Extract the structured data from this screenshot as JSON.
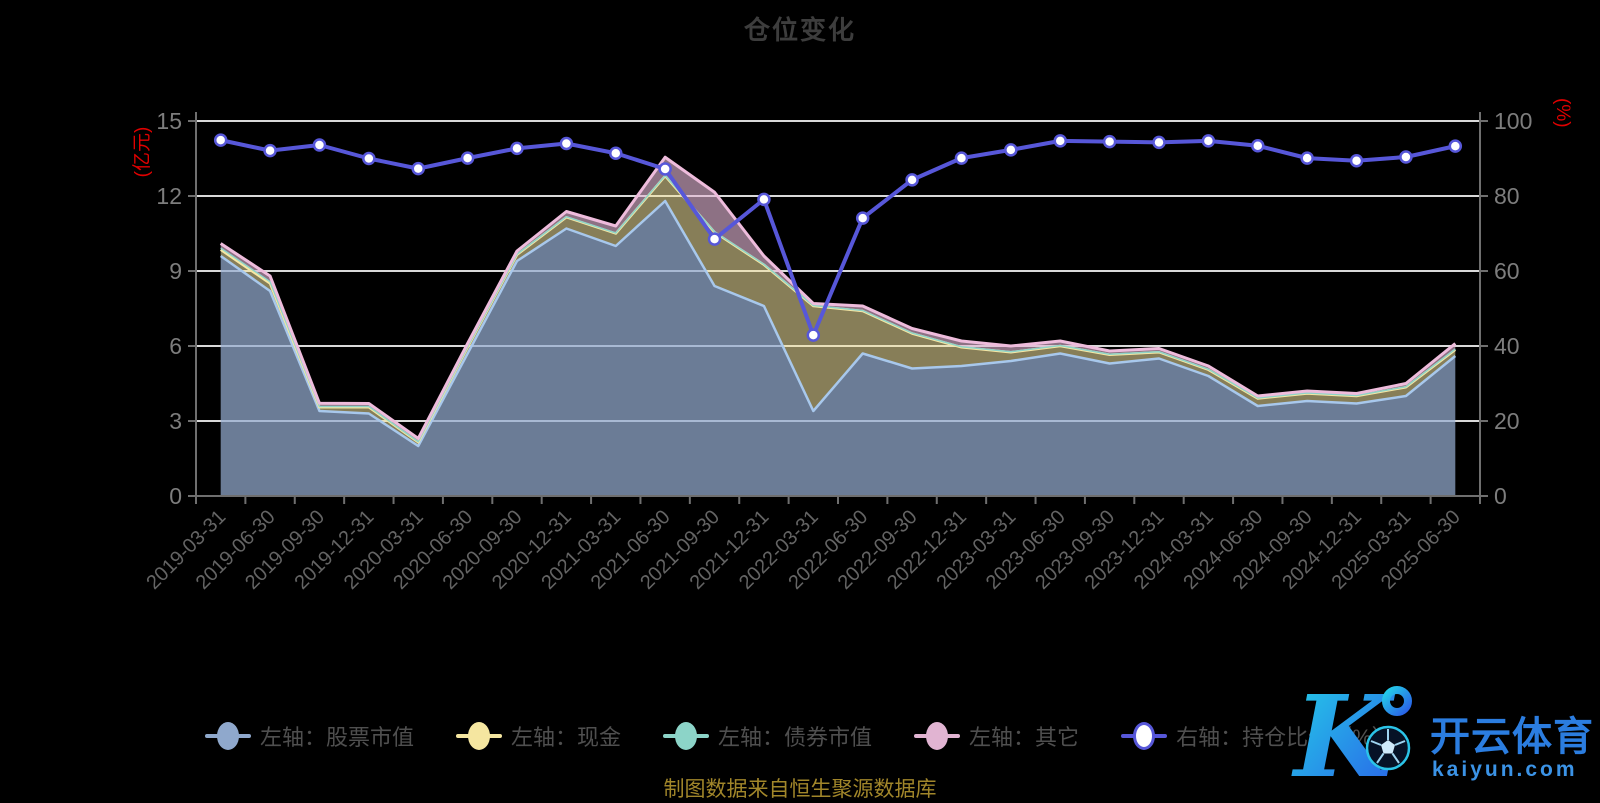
{
  "title": "仓位变化",
  "footer": "制图数据来自恒生聚源数据库",
  "watermark": {
    "brand": "开云体育",
    "domain": "kaiyun.com"
  },
  "colors": {
    "background": "#000000",
    "gridline": "#d9d9d9",
    "axis": "#6f6f6f",
    "y_tick_label": "#7d7d7d",
    "x_tick_label": "#646464",
    "axis_name_red": "#e00000",
    "title_gray": "#3d3d3d",
    "legend_text": "#4f4f4f",
    "footer_gold": "#a1862a",
    "watermark_cyan": "#24cfe8",
    "watermark_blue": "#2b7de0",
    "watermark_light_blue": "#3b93e6"
  },
  "chart_data": {
    "type": "area",
    "subtype": "stacked-area-with-line",
    "grid": true,
    "legend_position": "bottom",
    "categories": [
      "2019-03-31",
      "2019-06-30",
      "2019-09-30",
      "2019-12-31",
      "2020-03-31",
      "2020-06-30",
      "2020-09-30",
      "2020-12-31",
      "2021-03-31",
      "2021-06-30",
      "2021-09-30",
      "2021-12-31",
      "2022-03-31",
      "2022-06-30",
      "2022-09-30",
      "2022-12-31",
      "2023-03-31",
      "2023-06-30",
      "2023-09-30",
      "2023-12-31",
      "2024-03-31",
      "2024-06-30",
      "2024-09-30",
      "2024-12-31",
      "2025-03-31",
      "2025-06-30"
    ],
    "left_axis": {
      "name": "(亿元)",
      "min": 0,
      "max": 15,
      "ticks": [
        0,
        3,
        6,
        9,
        12,
        15
      ]
    },
    "right_axis": {
      "name": "(%)",
      "min": 0,
      "max": 100,
      "ticks": [
        0,
        20,
        40,
        60,
        80,
        100
      ]
    },
    "series": [
      {
        "name": "左轴：股票市值",
        "type": "area",
        "stack": "total",
        "yaxis": "left",
        "color": "#8fa8cc",
        "line_color": "#a8c8ec",
        "fill": "rgba(148,172,208,0.72)",
        "values": [
          9.6,
          8.2,
          3.4,
          3.3,
          2.0,
          5.7,
          9.4,
          10.7,
          10.0,
          11.8,
          8.4,
          7.6,
          3.4,
          5.7,
          5.1,
          5.2,
          5.4,
          5.7,
          5.3,
          5.5,
          4.8,
          3.6,
          3.8,
          3.7,
          4.0,
          5.6
        ]
      },
      {
        "name": "左轴：现金",
        "type": "area",
        "stack": "total",
        "yaxis": "left",
        "color": "#f5e6a0",
        "line_color": "#f6e7a4",
        "fill": "rgba(245,230,160,0.55)",
        "values": [
          0.25,
          0.3,
          0.15,
          0.25,
          0.15,
          0.25,
          0.25,
          0.45,
          0.5,
          1.0,
          2.15,
          1.65,
          4.2,
          1.7,
          1.4,
          0.75,
          0.35,
          0.3,
          0.35,
          0.25,
          0.25,
          0.3,
          0.3,
          0.3,
          0.35,
          0.25
        ]
      },
      {
        "name": "左轴：债券市值",
        "type": "area",
        "stack": "total",
        "yaxis": "left",
        "color": "#8cd4c8",
        "line_color": "#8fd4c8",
        "fill": "rgba(140,212,200,0.6)",
        "values": [
          0.07,
          0.07,
          0.03,
          0.03,
          0.02,
          0.02,
          0.02,
          0.02,
          0.02,
          0.02,
          0.02,
          0.02,
          0.02,
          0.02,
          0.02,
          0.02,
          0.02,
          0.02,
          0.02,
          0.02,
          0.02,
          0.02,
          0.02,
          0.02,
          0.02,
          0.03
        ]
      },
      {
        "name": "左轴：其它",
        "type": "area",
        "stack": "total",
        "yaxis": "left",
        "color": "#e1b4d2",
        "line_color": "#eebcdc",
        "fill": "rgba(228,182,213,0.62)",
        "values": [
          0.18,
          0.23,
          0.13,
          0.12,
          0.13,
          0.13,
          0.13,
          0.21,
          0.28,
          0.73,
          1.58,
          0.33,
          0.08,
          0.18,
          0.18,
          0.23,
          0.23,
          0.18,
          0.13,
          0.13,
          0.13,
          0.08,
          0.08,
          0.08,
          0.13,
          0.22
        ]
      },
      {
        "name": "右轴：持仓比例（%）",
        "type": "line",
        "yaxis": "right",
        "color": "#5757d9",
        "hollow_marker": true,
        "values": [
          94.9,
          92.1,
          93.6,
          90.0,
          87.3,
          90.1,
          92.7,
          94.0,
          91.4,
          87.2,
          68.5,
          79.1,
          42.9,
          74.1,
          84.3,
          90.1,
          92.3,
          94.7,
          94.5,
          94.3,
          94.7,
          93.4,
          90.1,
          89.4,
          90.4,
          93.3
        ]
      }
    ]
  }
}
